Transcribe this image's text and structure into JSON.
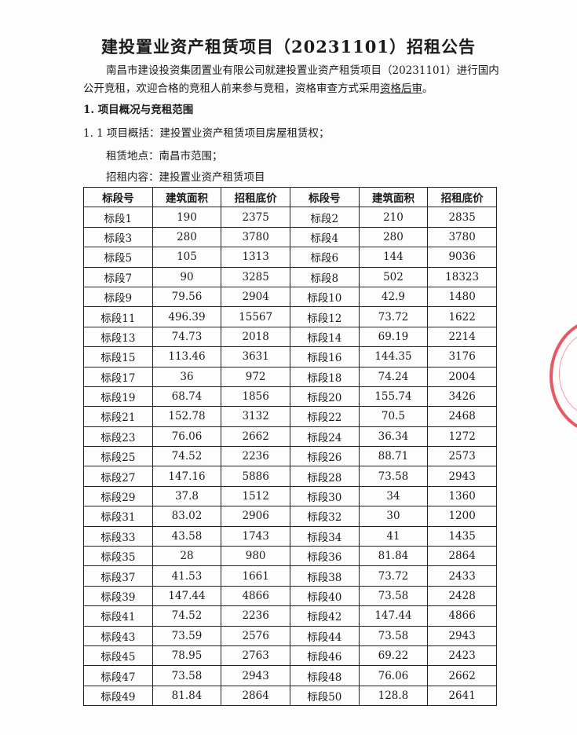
{
  "title": "建投置业资产租赁项目（20231101）招租公告",
  "intro": {
    "line1": "南昌市建设投资集团置业有限公司就建投置业资产租赁项目（20231101）进行国内",
    "line2": "公开竞租，欢迎合格的竞租人前来参与竞租，资格审查方式采用",
    "line2_underlined": "资格后审",
    "line2_end": "。"
  },
  "section1": "1. 项目概况与竞租范围",
  "section1_1": "1. 1  项目概括：建投置业资产租赁项目房屋租赁权；",
  "location": "租赁地点：南昌市范围；",
  "content": "招租内容：建投置业资产租赁项目",
  "table": {
    "headers": [
      "标段号",
      "建筑面积",
      "招租底价",
      "标段号",
      "建筑面积",
      "招租底价"
    ],
    "rows": [
      [
        "标段1",
        "190",
        "2375",
        "标段2",
        "210",
        "2835"
      ],
      [
        "标段3",
        "280",
        "3780",
        "标段4",
        "280",
        "3780"
      ],
      [
        "标段5",
        "105",
        "1313",
        "标段6",
        "144",
        "9036"
      ],
      [
        "标段7",
        "90",
        "3285",
        "标段8",
        "502",
        "18323"
      ],
      [
        "标段9",
        "79.56",
        "2904",
        "标段10",
        "42.9",
        "1480"
      ],
      [
        "标段11",
        "496.39",
        "15567",
        "标段12",
        "73.72",
        "1622"
      ],
      [
        "标段13",
        "74.73",
        "2018",
        "标段14",
        "69.19",
        "2214"
      ],
      [
        "标段15",
        "113.46",
        "3631",
        "标段16",
        "144.35",
        "3176"
      ],
      [
        "标段17",
        "36",
        "972",
        "标段18",
        "74.24",
        "2004"
      ],
      [
        "标段19",
        "68.74",
        "1856",
        "标段20",
        "155.74",
        "3426"
      ],
      [
        "标段21",
        "152.78",
        "3132",
        "标段22",
        "70.5",
        "2468"
      ],
      [
        "标段23",
        "76.06",
        "2662",
        "标段24",
        "36.34",
        "1272"
      ],
      [
        "标段25",
        "74.52",
        "2236",
        "标段26",
        "88.71",
        "2573"
      ],
      [
        "标段27",
        "147.16",
        "5886",
        "标段28",
        "73.58",
        "2943"
      ],
      [
        "标段29",
        "37.8",
        "1512",
        "标段30",
        "34",
        "1360"
      ],
      [
        "标段31",
        "83.02",
        "2906",
        "标段32",
        "30",
        "1200"
      ],
      [
        "标段33",
        "43.58",
        "1743",
        "标段34",
        "41",
        "1435"
      ],
      [
        "标段35",
        "28",
        "980",
        "标段36",
        "81.84",
        "2864"
      ],
      [
        "标段37",
        "41.53",
        "1661",
        "标段38",
        "73.72",
        "2433"
      ],
      [
        "标段39",
        "147.44",
        "4866",
        "标段40",
        "73.58",
        "2428"
      ],
      [
        "标段41",
        "74.52",
        "2236",
        "标段42",
        "147.44",
        "4866"
      ],
      [
        "标段43",
        "73.59",
        "2576",
        "标段44",
        "73.58",
        "2943"
      ],
      [
        "标段45",
        "78.95",
        "2763",
        "标段46",
        "69.22",
        "2423"
      ],
      [
        "标段47",
        "73.58",
        "2943",
        "标段48",
        "76.06",
        "2662"
      ],
      [
        "标段49",
        "81.84",
        "2864",
        "标段50",
        "128.8",
        "2641"
      ]
    ]
  },
  "seal_color": "#e0303a"
}
